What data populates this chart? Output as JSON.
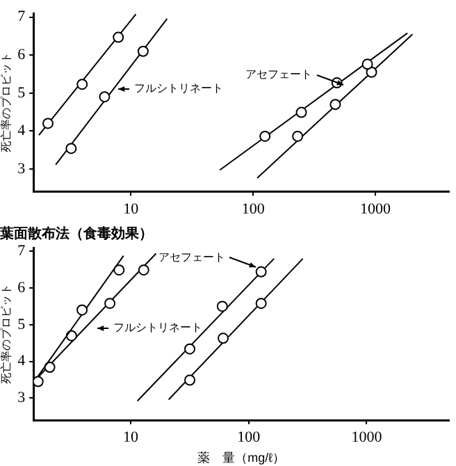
{
  "chart_data": [
    {
      "type": "scatter",
      "ylabel": "死亡率のプロビット",
      "log": "x",
      "xlim": [
        1.6,
        4000
      ],
      "ylim": [
        2.4,
        7.1
      ],
      "xticks": [
        10,
        100,
        1000
      ],
      "yticks": [
        3,
        4,
        5,
        6,
        7
      ],
      "grid": false,
      "legend": false,
      "marker": "circle",
      "series": [
        {
          "color": "#000000",
          "x": [
            2.1,
            4.0,
            7.9
          ],
          "values": [
            4.2,
            5.23,
            6.47
          ]
        },
        {
          "type": "line",
          "marker": "none",
          "color": "#000000",
          "x": [
            1.77,
            11.0
          ],
          "values": [
            3.89,
            7.08
          ]
        },
        {
          "color": "#000000",
          "x": [
            3.25,
            6.1,
            12.6
          ],
          "values": [
            3.54,
            4.9,
            6.1
          ]
        },
        {
          "type": "line",
          "marker": "none",
          "color": "#000000",
          "x": [
            2.43,
            19.8
          ],
          "values": [
            3.11,
            6.96
          ]
        },
        {
          "color": "#000000",
          "x": [
            125,
            248,
            484,
            860
          ],
          "values": [
            3.86,
            4.49,
            5.27,
            5.76
          ]
        },
        {
          "type": "line",
          "marker": "none",
          "color": "#000000",
          "x": [
            53.4,
            1826
          ],
          "values": [
            2.97,
            6.58
          ]
        },
        {
          "color": "#000000",
          "x": [
            231,
            470,
            930
          ],
          "values": [
            3.86,
            4.7,
            5.55
          ]
        },
        {
          "type": "line",
          "marker": "none",
          "color": "#000000",
          "x": [
            108,
            2010
          ],
          "values": [
            2.76,
            6.55
          ]
        }
      ],
      "annotations": [
        {
          "text": "フルシトリネート",
          "x": 7,
          "y": 5.1
        },
        {
          "text": "アセフェート",
          "x": 600,
          "y": 5.1
        }
      ]
    },
    {
      "type": "scatter",
      "title": "葉面散布法（食毒効果）",
      "xlabel": "薬　量（mg/ℓ）",
      "ylabel": "死亡率のプロビット",
      "log": "x",
      "xlim": [
        1.5,
        5000
      ],
      "ylim": [
        2.4,
        7.1
      ],
      "xticks": [
        10,
        100,
        1000
      ],
      "yticks": [
        3,
        4,
        5,
        6,
        7
      ],
      "grid": false,
      "legend": false,
      "marker": "circle",
      "series": [
        {
          "color": "#000000",
          "x": [
            1.64,
            3.87,
            7.97
          ],
          "values": [
            3.45,
            5.4,
            6.49
          ]
        },
        {
          "type": "line",
          "marker": "none",
          "color": "#000000",
          "x": [
            1.57,
            8.7
          ],
          "values": [
            3.51,
            6.88
          ]
        },
        {
          "color": "#000000",
          "x": [
            2.06,
            3.15,
            6.66,
            12.9
          ],
          "values": [
            3.84,
            4.7,
            5.58,
            6.49
          ]
        },
        {
          "type": "line",
          "marker": "none",
          "color": "#000000",
          "x": [
            1.64,
            16.4
          ],
          "values": [
            3.57,
            6.94
          ]
        },
        {
          "color": "#000000",
          "x": [
            31.7,
            59.8,
            127.6
          ],
          "values": [
            4.34,
            5.5,
            6.44
          ]
        },
        {
          "type": "line",
          "marker": "none",
          "color": "#000000",
          "x": [
            11.4,
            164
          ],
          "values": [
            2.92,
            6.8
          ]
        },
        {
          "color": "#000000",
          "x": [
            31.7,
            60.8,
            127.6
          ],
          "values": [
            3.49,
            4.63,
            5.58
          ]
        },
        {
          "type": "line",
          "marker": "none",
          "color": "#000000",
          "x": [
            21,
            288
          ],
          "values": [
            2.96,
            6.8
          ]
        }
      ],
      "annotations": [
        {
          "text": "フルシトリネート",
          "x": 4.6,
          "y": 4.9
        },
        {
          "text": "アセフェート",
          "x": 127.6,
          "y": 6.44
        }
      ]
    }
  ]
}
